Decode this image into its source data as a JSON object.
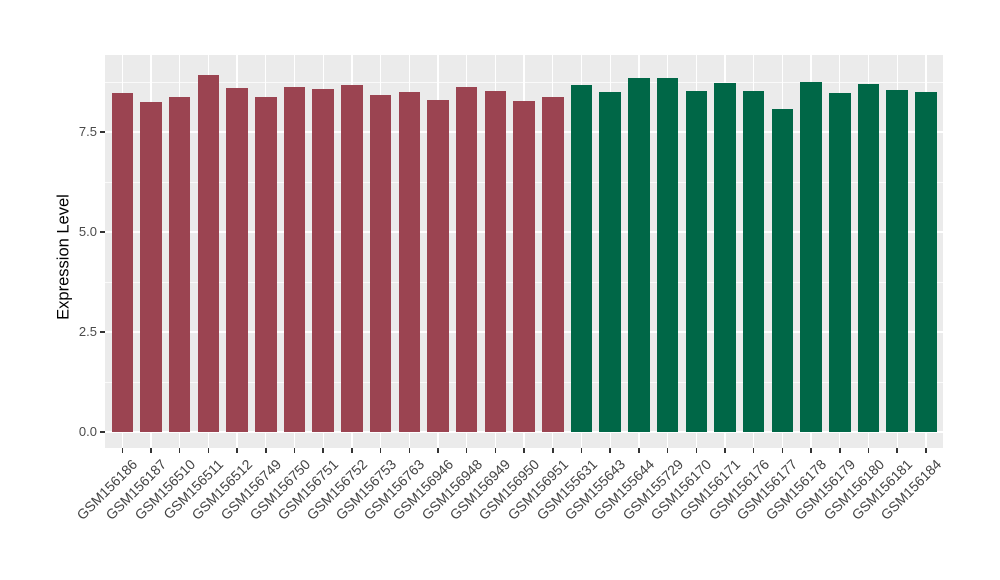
{
  "figure": {
    "background_color": "#FFFFFF",
    "panel_background_color": "#EBEBEB",
    "gridline_color": "#FFFFFF",
    "tick_mark_color": "#333333",
    "axis_text_color": "#4A4A4A",
    "axis_title_color": "#000000"
  },
  "chart_data": {
    "type": "bar",
    "title": "",
    "xlabel": "",
    "ylabel": "Expression Level",
    "ylim": [
      0,
      9.4
    ],
    "yticks": [
      0,
      2.5,
      5,
      7.5
    ],
    "ytick_labels": [
      "0.0",
      "2.5",
      "5.0",
      "7.5"
    ],
    "yminor_ticks": [
      1.25,
      3.75,
      6.25,
      8.75
    ],
    "grid": "on",
    "legend": "none",
    "bar_group_colors": [
      "#9B4451",
      "#006747"
    ],
    "categories": [
      "GSM156186",
      "GSM156187",
      "GSM156510",
      "GSM156511",
      "GSM156512",
      "GSM156749",
      "GSM156750",
      "GSM156751",
      "GSM156752",
      "GSM156753",
      "GSM156763",
      "GSM156946",
      "GSM156948",
      "GSM156949",
      "GSM156950",
      "GSM156951",
      "GSM155631",
      "GSM155643",
      "GSM155644",
      "GSM155729",
      "GSM156170",
      "GSM156171",
      "GSM156176",
      "GSM156177",
      "GSM156178",
      "GSM156179",
      "GSM156180",
      "GSM156181",
      "GSM156184"
    ],
    "values": [
      8.48,
      8.26,
      8.37,
      8.93,
      8.59,
      8.38,
      8.62,
      8.57,
      8.68,
      8.43,
      8.51,
      8.3,
      8.63,
      8.53,
      8.28,
      8.38,
      8.68,
      8.5,
      8.86,
      8.86,
      8.53,
      8.72,
      8.53,
      8.08,
      8.76,
      8.48,
      8.7,
      8.55,
      8.51
    ],
    "group_index": [
      0,
      0,
      0,
      0,
      0,
      0,
      0,
      0,
      0,
      0,
      0,
      0,
      0,
      0,
      0,
      0,
      1,
      1,
      1,
      1,
      1,
      1,
      1,
      1,
      1,
      1,
      1,
      1,
      1
    ]
  }
}
